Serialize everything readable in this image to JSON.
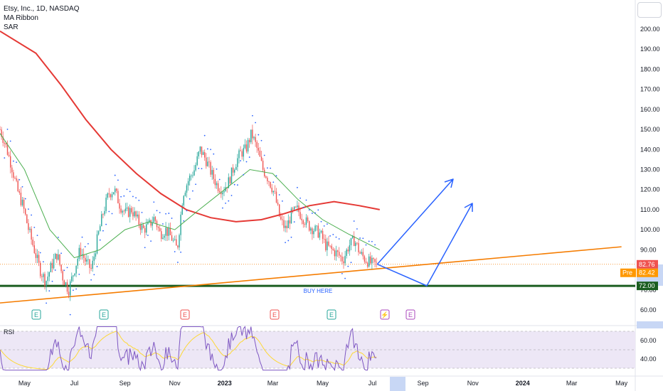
{
  "chart_data": [
    {
      "type": "candlestick",
      "title": "Etsy, Inc., 1D, NASDAQ",
      "indicators": [
        "MA Ribbon",
        "SAR"
      ],
      "x_ticks": [
        "May",
        "Jul",
        "Sep",
        "Nov",
        "2023",
        "Mar",
        "May",
        "Jul",
        "Sep",
        "Nov",
        "2024",
        "Mar",
        "May"
      ],
      "y_ticks": [
        200,
        190,
        180,
        170,
        160,
        150,
        140,
        130,
        120,
        110,
        100,
        90,
        80,
        70,
        60
      ],
      "y_tick_labels": [
        "200.00",
        "190.00",
        "180.00",
        "170.00",
        "160.00",
        "150.00",
        "140.00",
        "130.00",
        "120.00",
        "110.00",
        "100.00",
        "90.00",
        "80.00",
        "70.00",
        "60.00"
      ],
      "ylim": [
        55,
        205
      ],
      "price_path": [
        [
          "2022-04-01",
          150
        ],
        [
          "2022-04-08",
          142
        ],
        [
          "2022-04-15",
          132
        ],
        [
          "2022-04-22",
          120
        ],
        [
          "2022-04-29",
          112
        ],
        [
          "2022-05-06",
          100
        ],
        [
          "2022-05-13",
          90
        ],
        [
          "2022-05-20",
          80
        ],
        [
          "2022-05-27",
          74
        ],
        [
          "2022-06-03",
          82
        ],
        [
          "2022-06-10",
          88
        ],
        [
          "2022-06-17",
          76
        ],
        [
          "2022-06-24",
          70
        ],
        [
          "2022-07-01",
          80
        ],
        [
          "2022-07-08",
          90
        ],
        [
          "2022-07-15",
          84
        ],
        [
          "2022-07-22",
          80
        ],
        [
          "2022-07-29",
          95
        ],
        [
          "2022-08-05",
          108
        ],
        [
          "2022-08-12",
          118
        ],
        [
          "2022-08-19",
          120
        ],
        [
          "2022-08-26",
          112
        ],
        [
          "2022-09-02",
          108
        ],
        [
          "2022-09-09",
          110
        ],
        [
          "2022-09-16",
          105
        ],
        [
          "2022-09-23",
          100
        ],
        [
          "2022-09-30",
          102
        ],
        [
          "2022-10-07",
          106
        ],
        [
          "2022-10-14",
          98
        ],
        [
          "2022-10-21",
          100
        ],
        [
          "2022-10-28",
          96
        ],
        [
          "2022-11-04",
          90
        ],
        [
          "2022-11-11",
          118
        ],
        [
          "2022-11-18",
          125
        ],
        [
          "2022-11-25",
          130
        ],
        [
          "2022-12-02",
          140
        ],
        [
          "2022-12-09",
          135
        ],
        [
          "2022-12-16",
          128
        ],
        [
          "2022-12-23",
          122
        ],
        [
          "2022-12-30",
          120
        ],
        [
          "2023-01-06",
          124
        ],
        [
          "2023-01-13",
          132
        ],
        [
          "2023-01-20",
          138
        ],
        [
          "2023-01-27",
          140
        ],
        [
          "2023-02-03",
          148
        ],
        [
          "2023-02-10",
          140
        ],
        [
          "2023-02-17",
          130
        ],
        [
          "2023-02-24",
          125
        ],
        [
          "2023-03-03",
          118
        ],
        [
          "2023-03-10",
          105
        ],
        [
          "2023-03-17",
          100
        ],
        [
          "2023-03-24",
          108
        ],
        [
          "2023-03-31",
          110
        ],
        [
          "2023-04-07",
          106
        ],
        [
          "2023-04-14",
          102
        ],
        [
          "2023-04-21",
          100
        ],
        [
          "2023-04-28",
          98
        ],
        [
          "2023-05-05",
          92
        ],
        [
          "2023-05-12",
          90
        ],
        [
          "2023-05-19",
          88
        ],
        [
          "2023-05-26",
          85
        ],
        [
          "2023-06-02",
          92
        ],
        [
          "2023-06-09",
          95
        ],
        [
          "2023-06-16",
          88
        ],
        [
          "2023-06-23",
          85
        ],
        [
          "2023-06-30",
          83
        ],
        [
          "2023-07-07",
          82.76
        ]
      ],
      "ma_long": [
        [
          "2022-04-01",
          199
        ],
        [
          "2022-05-15",
          188
        ],
        [
          "2022-06-15",
          172
        ],
        [
          "2022-07-15",
          155
        ],
        [
          "2022-08-15",
          140
        ],
        [
          "2022-09-15",
          128
        ],
        [
          "2022-10-15",
          118
        ],
        [
          "2022-11-15",
          110
        ],
        [
          "2022-12-15",
          106
        ],
        [
          "2023-01-15",
          104
        ],
        [
          "2023-02-15",
          105
        ],
        [
          "2023-03-15",
          108
        ],
        [
          "2023-04-15",
          112
        ],
        [
          "2023-05-15",
          114
        ],
        [
          "2023-06-15",
          112
        ],
        [
          "2023-07-10",
          110
        ]
      ],
      "ma_short": [
        [
          "2022-04-01",
          148
        ],
        [
          "2022-05-01",
          130
        ],
        [
          "2022-06-01",
          100
        ],
        [
          "2022-07-01",
          86
        ],
        [
          "2022-08-01",
          90
        ],
        [
          "2022-09-01",
          100
        ],
        [
          "2022-10-01",
          104
        ],
        [
          "2022-11-01",
          100
        ],
        [
          "2022-12-01",
          110
        ],
        [
          "2023-01-01",
          120
        ],
        [
          "2023-02-01",
          130
        ],
        [
          "2023-03-01",
          128
        ],
        [
          "2023-04-01",
          115
        ],
        [
          "2023-05-01",
          105
        ],
        [
          "2023-06-01",
          98
        ],
        [
          "2023-07-10",
          90
        ]
      ],
      "last_price": "82.76",
      "premarket_label": "Pre",
      "premarket_price": "82.42",
      "support_level": "72.00",
      "support_value": 72,
      "annotation": "BUY HERE",
      "colors": {
        "up": "#26a69a",
        "down": "#ef5350",
        "ma_long": "#e53935",
        "ma_short": "#4caf50",
        "sar": "#2962ff",
        "trendline": "#f57c00",
        "support": "#1b5e20",
        "projection": "#2962ff"
      }
    },
    {
      "type": "line",
      "title": "RSI",
      "y_ticks": [
        60,
        40
      ],
      "y_tick_labels": [
        "60.00",
        "40.00"
      ],
      "ylim": [
        20,
        85
      ],
      "bands": [
        30,
        50,
        70
      ],
      "series": [
        {
          "name": "RSI",
          "color": "#7e57c2"
        },
        {
          "name": "RSI-based MA",
          "color": "#fdd835"
        }
      ]
    }
  ]
}
